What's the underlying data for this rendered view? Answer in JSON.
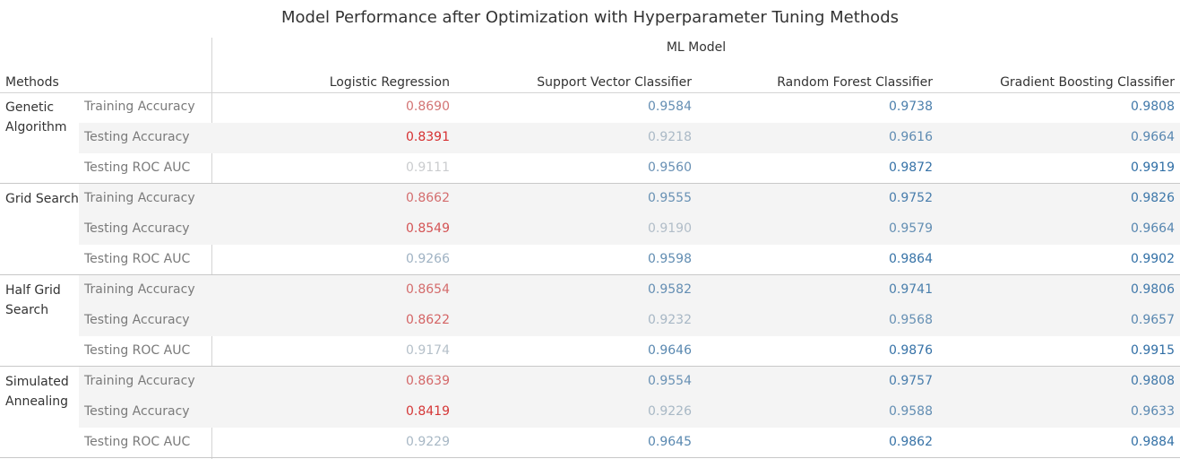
{
  "title": "Model Performance after Optimization with Hyperparameter Tuning Methods",
  "group_header": "ML Model",
  "methods_header": "Methods",
  "chart_data": {
    "type": "table",
    "title": "Model Performance after Optimization with Hyperparameter Tuning Methods",
    "columns": [
      "Logistic Regression",
      "Support Vector Classifier",
      "Random Forest Classifier",
      "Gradient Boosting Classifier"
    ],
    "color_scale": {
      "low": "#d62728",
      "mid": "#d0d0d0",
      "high": "#2f6ea5"
    },
    "groups": [
      {
        "method": "Genetic Algorithm",
        "rows": [
          {
            "metric": "Training Accuracy",
            "values": [
              "0.8690",
              "0.9584",
              "0.9738",
              "0.9808"
            ]
          },
          {
            "metric": "Testing Accuracy",
            "values": [
              "0.8391",
              "0.9218",
              "0.9616",
              "0.9664"
            ]
          },
          {
            "metric": "Testing ROC AUC",
            "values": [
              "0.9111",
              "0.9560",
              "0.9872",
              "0.9919"
            ]
          }
        ]
      },
      {
        "method": "Grid Search",
        "rows": [
          {
            "metric": "Training Accuracy",
            "values": [
              "0.8662",
              "0.9555",
              "0.9752",
              "0.9826"
            ]
          },
          {
            "metric": "Testing Accuracy",
            "values": [
              "0.8549",
              "0.9190",
              "0.9579",
              "0.9664"
            ]
          },
          {
            "metric": "Testing ROC AUC",
            "values": [
              "0.9266",
              "0.9598",
              "0.9864",
              "0.9902"
            ]
          }
        ]
      },
      {
        "method": "Half Grid Search",
        "rows": [
          {
            "metric": "Training Accuracy",
            "values": [
              "0.8654",
              "0.9582",
              "0.9741",
              "0.9806"
            ]
          },
          {
            "metric": "Testing Accuracy",
            "values": [
              "0.8622",
              "0.9232",
              "0.9568",
              "0.9657"
            ]
          },
          {
            "metric": "Testing ROC AUC",
            "values": [
              "0.9174",
              "0.9646",
              "0.9876",
              "0.9915"
            ]
          }
        ]
      },
      {
        "method": "Simulated Annealing",
        "rows": [
          {
            "metric": "Training Accuracy",
            "values": [
              "0.8639",
              "0.9554",
              "0.9757",
              "0.9808"
            ]
          },
          {
            "metric": "Testing Accuracy",
            "values": [
              "0.8419",
              "0.9226",
              "0.9588",
              "0.9633"
            ]
          },
          {
            "metric": "Testing ROC AUC",
            "values": [
              "0.9229",
              "0.9645",
              "0.9862",
              "0.9884"
            ]
          }
        ]
      }
    ]
  }
}
